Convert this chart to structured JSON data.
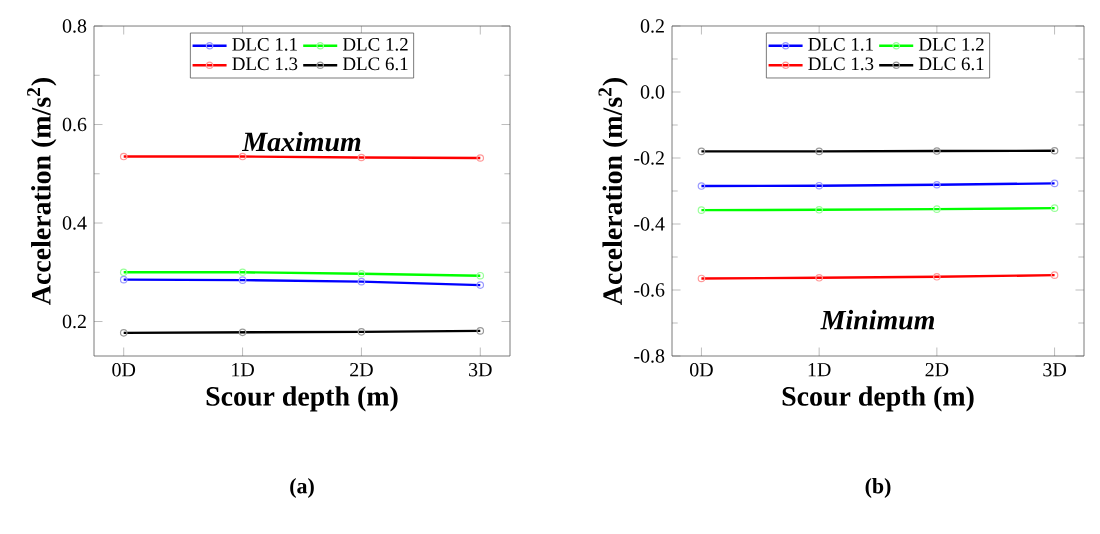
{
  "chart_data": [
    {
      "type": "line",
      "xlabel": "Scour depth (m)",
      "ylabel": "Acceleration (m/s$^{2}$)",
      "categories": [
        "0D",
        "1D",
        "2D",
        "3D"
      ],
      "series": [
        {
          "name": "DLC 1.1",
          "color": "#0000ff",
          "values": [
            0.285,
            0.284,
            0.281,
            0.274
          ]
        },
        {
          "name": "DLC 1.2",
          "color": "#00ff00",
          "values": [
            0.3,
            0.3,
            0.297,
            0.293
          ]
        },
        {
          "name": "DLC 1.3",
          "color": "#ff0000",
          "values": [
            0.535,
            0.535,
            0.533,
            0.532
          ]
        },
        {
          "name": "DLC 6.1",
          "color": "#000000",
          "values": [
            0.177,
            0.178,
            0.179,
            0.181
          ]
        }
      ],
      "ylim": [
        0.13,
        0.8
      ],
      "yticks": [
        0.2,
        0.4,
        0.6,
        0.8
      ],
      "legend": "top",
      "marker": "circle",
      "grid": false,
      "annotations": [
        "Maximum",
        "(a)"
      ]
    },
    {
      "type": "line",
      "xlabel": "Scour depth (m)",
      "ylabel": "Acceleration (m/s$^{2}$)",
      "categories": [
        "0D",
        "1D",
        "2D",
        "3D"
      ],
      "series": [
        {
          "name": "DLC 1.1",
          "color": "#0000ff",
          "values": [
            -0.285,
            -0.284,
            -0.281,
            -0.277
          ]
        },
        {
          "name": "DLC 1.2",
          "color": "#00ff00",
          "values": [
            -0.358,
            -0.357,
            -0.355,
            -0.352
          ]
        },
        {
          "name": "DLC 1.3",
          "color": "#ff0000",
          "values": [
            -0.565,
            -0.563,
            -0.56,
            -0.555
          ]
        },
        {
          "name": "DLC 6.1",
          "color": "#000000",
          "values": [
            -0.18,
            -0.18,
            -0.179,
            -0.178
          ]
        }
      ],
      "ylim": [
        -0.8,
        0.2
      ],
      "yticks": [
        -0.8,
        -0.6,
        -0.4,
        -0.2,
        {
          "value": 0,
          "label": "0.0"
        },
        0.2
      ],
      "legend": "top",
      "marker": "circle",
      "grid": false,
      "annotations": [
        "Minimum",
        "(b)"
      ]
    }
  ]
}
